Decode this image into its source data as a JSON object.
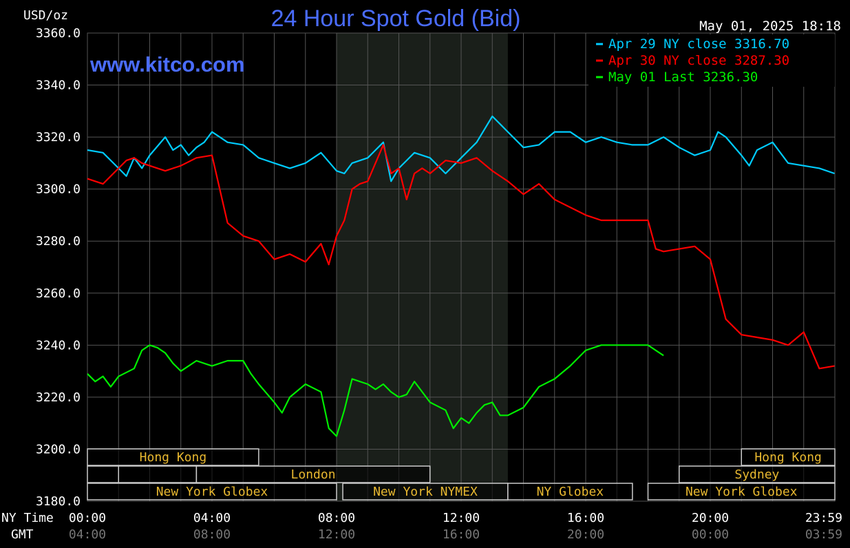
{
  "header": {
    "unit_label": "USD/oz",
    "title": "24 Hour Spot Gold (Bid)",
    "timestamp": "May 01, 2025 18:18",
    "watermark": "www.kitco.com"
  },
  "legend": [
    {
      "text": "Apr 29 NY close 3316.70",
      "color": "#00ccff"
    },
    {
      "text": "Apr 30 NY close 3287.30",
      "color": "#ff0000"
    },
    {
      "text": "May 01 Last 3236.30",
      "color": "#00ee00"
    }
  ],
  "axis_labels": {
    "ny_time": "NY Time",
    "gmt": "GMT"
  },
  "x_ticks": [
    {
      "ny": "00:00",
      "gmt": "04:00"
    },
    {
      "ny": "04:00",
      "gmt": "08:00"
    },
    {
      "ny": "08:00",
      "gmt": "12:00"
    },
    {
      "ny": "12:00",
      "gmt": "16:00"
    },
    {
      "ny": "16:00",
      "gmt": "20:00"
    },
    {
      "ny": "20:00",
      "gmt": "00:00"
    },
    {
      "ny": "23:59",
      "gmt": "03:59"
    }
  ],
  "y_ticks": [
    "3360.0",
    "3340.0",
    "3320.0",
    "3300.0",
    "3280.0",
    "3260.0",
    "3240.0",
    "3220.0",
    "3200.0",
    "3180.0"
  ],
  "sessions": [
    {
      "label": "Hong Kong",
      "row": 0,
      "start": 0.0,
      "end": 5.5
    },
    {
      "label": "Hong Kong",
      "row": 0,
      "start": 21.0,
      "end": 24.0
    },
    {
      "label": "",
      "row": 1,
      "start": 0.0,
      "end": 1.0
    },
    {
      "label": "",
      "row": 1,
      "start": 1.0,
      "end": 3.5
    },
    {
      "label": "London",
      "row": 1,
      "start": 3.5,
      "end": 11.0
    },
    {
      "label": "Sydney",
      "row": 1,
      "start": 19.0,
      "end": 24.0
    },
    {
      "label": "New York Globex",
      "row": 2,
      "start": 0.0,
      "end": 8.0
    },
    {
      "label": "New York NYMEX",
      "row": 2,
      "start": 8.2,
      "end": 13.5
    },
    {
      "label": "NY Globex",
      "row": 2,
      "start": 13.5,
      "end": 17.5
    },
    {
      "label": "New York Globex",
      "row": 2,
      "start": 18.0,
      "end": 24.0
    }
  ],
  "colors": {
    "background": "#000000",
    "grid": "#555555",
    "title": "#4a6cff",
    "text": "#ffffff",
    "session_text": "#e8b830",
    "shade": "#1a1f1a",
    "apr29": "#00ccff",
    "apr30": "#ff0000",
    "may01": "#00ee00"
  },
  "chart_data": {
    "type": "line",
    "title": "24 Hour Spot Gold (Bid)",
    "ylabel": "USD/oz",
    "xlabel": "NY Time",
    "ylim": [
      3180,
      3360
    ],
    "xlim": [
      0,
      24
    ],
    "x_unit": "hours (NY time)",
    "shaded_region": [
      8.0,
      13.5
    ],
    "grid": true,
    "legend_position": "top-right",
    "series": [
      {
        "name": "Apr 29 NY close 3316.70",
        "color": "#00ccff",
        "x": [
          0,
          0.5,
          1,
          1.25,
          1.5,
          1.75,
          2,
          2.5,
          2.75,
          3,
          3.25,
          3.5,
          3.75,
          4,
          4.25,
          4.5,
          5,
          5.5,
          6,
          6.5,
          7,
          7.5,
          8,
          8.25,
          8.5,
          9,
          9.25,
          9.5,
          9.75,
          10,
          10.25,
          10.5,
          11,
          11.5,
          12,
          12.5,
          13,
          13.25,
          13.5,
          14,
          14.5,
          15,
          15.5,
          16,
          16.5,
          17,
          17.5,
          18,
          18.5,
          19,
          19.5,
          20,
          20.25,
          20.5,
          21,
          21.25,
          21.5,
          22,
          22.5,
          23,
          23.5,
          23.99
        ],
        "values": [
          3315,
          3314,
          3308,
          3305,
          3312,
          3308,
          3313,
          3320,
          3315,
          3317,
          3313,
          3316,
          3318,
          3322,
          3320,
          3318,
          3317,
          3312,
          3310,
          3308,
          3310,
          3314,
          3307,
          3306,
          3310,
          3312,
          3315,
          3318,
          3303,
          3308,
          3311,
          3314,
          3312,
          3306,
          3312,
          3318,
          3328,
          3325,
          3322,
          3316,
          3317,
          3322,
          3322,
          3318,
          3320,
          3318,
          3317,
          3317,
          3320,
          3316,
          3313,
          3315,
          3322,
          3320,
          3313,
          3309,
          3315,
          3318,
          3310,
          3309,
          3308,
          3306
        ]
      },
      {
        "name": "Apr 30 NY close 3287.30",
        "color": "#ff0000",
        "x": [
          0,
          0.5,
          1,
          1.25,
          1.5,
          1.75,
          2,
          2.5,
          3,
          3.5,
          4,
          4.25,
          4.5,
          5,
          5.5,
          6,
          6.5,
          7,
          7.5,
          7.75,
          8,
          8.25,
          8.5,
          8.75,
          9,
          9.5,
          9.75,
          10,
          10.25,
          10.5,
          10.75,
          11,
          11.5,
          12,
          12.5,
          13,
          13.5,
          14,
          14.5,
          15,
          15.5,
          16,
          16.5,
          17,
          17.5,
          18,
          18.25,
          18.5,
          19,
          19.5,
          20,
          20.5,
          21,
          21.5,
          22,
          22.5,
          23,
          23.5,
          23.99
        ],
        "values": [
          3304,
          3302,
          3308,
          3311,
          3312,
          3310,
          3309,
          3307,
          3309,
          3312,
          3313,
          3300,
          3287,
          3282,
          3280,
          3273,
          3275,
          3272,
          3279,
          3271,
          3282,
          3288,
          3300,
          3302,
          3303,
          3317,
          3306,
          3308,
          3296,
          3306,
          3308,
          3306,
          3311,
          3310,
          3312,
          3307,
          3303,
          3298,
          3302,
          3296,
          3293,
          3290,
          3288,
          3288,
          3288,
          3288,
          3277,
          3276,
          3277,
          3278,
          3273,
          3250,
          3244,
          3243,
          3242,
          3240,
          3245,
          3231,
          3232
        ]
      },
      {
        "name": "May 01 Last 3236.30",
        "color": "#00ee00",
        "x": [
          0,
          0.25,
          0.5,
          0.75,
          1,
          1.5,
          1.75,
          2,
          2.25,
          2.5,
          2.75,
          3,
          3.25,
          3.5,
          3.75,
          4,
          4.5,
          5,
          5.25,
          5.5,
          6,
          6.25,
          6.5,
          7,
          7.5,
          7.75,
          8,
          8.25,
          8.5,
          9,
          9.25,
          9.5,
          9.75,
          10,
          10.25,
          10.5,
          11,
          11.5,
          11.75,
          12,
          12.25,
          12.5,
          12.75,
          13,
          13.25,
          13.5,
          14,
          14.5,
          15,
          15.5,
          16,
          16.5,
          17,
          17.5,
          18,
          18.25,
          18.5
        ],
        "values": [
          3229,
          3226,
          3228,
          3224,
          3228,
          3231,
          3238,
          3240,
          3239,
          3237,
          3233,
          3230,
          3232,
          3234,
          3233,
          3232,
          3234,
          3234,
          3229,
          3225,
          3218,
          3214,
          3220,
          3225,
          3222,
          3208,
          3205,
          3215,
          3227,
          3225,
          3223,
          3225,
          3222,
          3220,
          3221,
          3226,
          3218,
          3215,
          3208,
          3212,
          3210,
          3214,
          3217,
          3218,
          3213,
          3213,
          3216,
          3224,
          3227,
          3232,
          3238,
          3240,
          3240,
          3240,
          3240,
          3238,
          3236
        ]
      }
    ]
  }
}
